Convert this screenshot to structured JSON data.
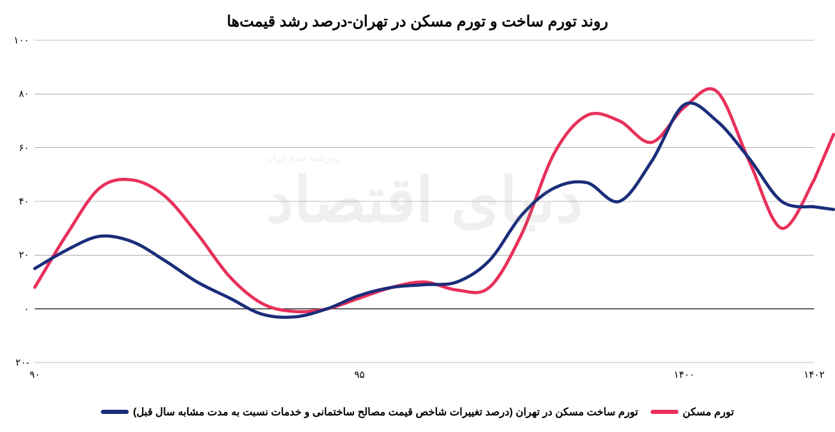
{
  "chart": {
    "type": "line",
    "title": "روند تورم ساخت و تورم مسکن در تهران-درصد رشد قیمت‌ها",
    "title_fontsize": 22,
    "title_color": "#000000",
    "background_color": "#ffffff",
    "plot_background": "#ffffff",
    "ylim": [
      -20,
      100
    ],
    "yticks": [
      -20,
      0,
      20,
      40,
      60,
      80,
      100
    ],
    "ytick_labels": [
      "-۲۰",
      "۰",
      "۲۰",
      "۴۰",
      "۶۰",
      "۸۰",
      "۱۰۰"
    ],
    "xlim": [
      90,
      102
    ],
    "xticks": [
      90,
      95,
      100,
      102
    ],
    "xtick_labels": [
      "۹۰",
      "۹۵",
      "۱۴۰۰",
      "۱۴۰۲"
    ],
    "grid_color": "#808080",
    "grid_width": 0.6,
    "axis_color": "#000000",
    "series": [
      {
        "name": "تورم مسکن",
        "color": "#e8305a",
        "line_width": 4.5,
        "x": [
          90,
          90.5,
          91,
          91.5,
          92,
          92.5,
          93,
          93.5,
          94,
          94.5,
          95,
          95.5,
          96,
          96.5,
          97,
          97.5,
          98,
          98.5,
          99,
          99.5,
          100,
          100.5,
          101,
          101.5,
          102
        ],
        "y": [
          8,
          28,
          45,
          48,
          42,
          28,
          12,
          2,
          -1,
          0,
          4,
          8,
          10,
          7,
          8,
          28,
          58,
          72,
          70,
          62,
          75,
          81,
          55,
          30,
          48
        ]
      },
      {
        "name": "تورم ساخت مسکن در تهران (درصد تغییرات شاخص قیمت مصالح ساختمانی و خدمات نسبت به مدت مشابه سال قبل)",
        "color": "#1a2d7a",
        "line_width": 4.5,
        "x": [
          90,
          90.5,
          91,
          91.5,
          92,
          92.5,
          93,
          93.5,
          94,
          94.5,
          95,
          95.5,
          96,
          96.5,
          97,
          97.5,
          98,
          98.5,
          99,
          99.5,
          100,
          100.5,
          101,
          101.5,
          102
        ],
        "y": [
          15,
          22,
          27,
          25,
          18,
          10,
          4,
          -2,
          -3,
          0,
          5,
          8,
          9,
          10,
          18,
          35,
          45,
          47,
          40,
          55,
          76,
          70,
          56,
          40,
          38
        ]
      }
    ],
    "legend": {
      "position": "bottom",
      "fontsize": 15,
      "swatch_width": 40,
      "swatch_height": 6
    },
    "watermark": {
      "main": "دنیای اقتصاد",
      "sub": "روزنامه صبح ایران",
      "opacity": 0.12,
      "fontsize": 90,
      "color": "#808080"
    }
  }
}
